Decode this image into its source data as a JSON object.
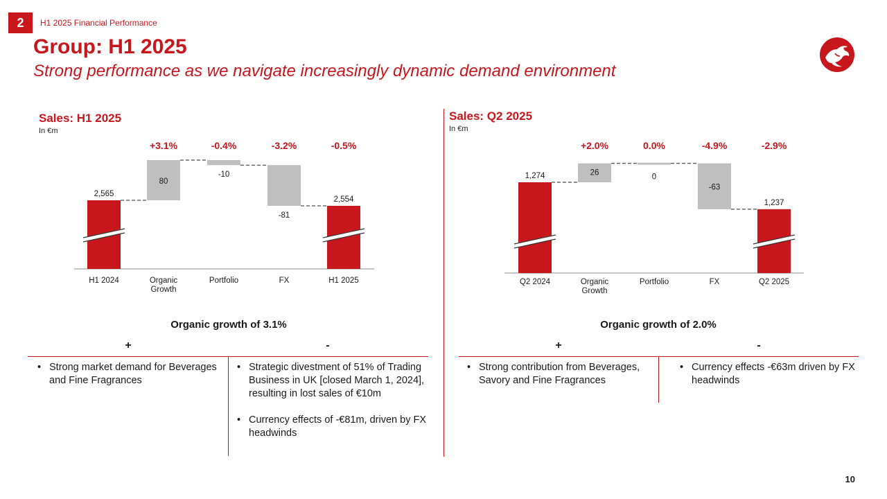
{
  "header": {
    "section_number": "2",
    "section_label": "H1 2025 Financial Performance",
    "title": "Group: H1 2025",
    "subtitle": "Strong performance as we navigate increasingly dynamic demand environment"
  },
  "colors": {
    "accent": "#c8161d",
    "delta_bar": "#bfbfbf",
    "axis": "#8c8c8c",
    "text": "#1a1a1a"
  },
  "icons": {
    "logo": "company-logo-icon"
  },
  "chart_data": [
    {
      "type": "bar",
      "subtype": "waterfall",
      "title": "Sales: H1 2025",
      "unit": "In €m",
      "categories": [
        "H1 2024",
        "Organic Growth",
        "Portfolio",
        "FX",
        "H1 2025"
      ],
      "values": [
        2565,
        80,
        -10,
        -81,
        2554
      ],
      "value_labels": [
        "2,565",
        "80",
        "-10",
        "-81",
        "2,554"
      ],
      "bar_kinds": [
        "total",
        "delta",
        "delta",
        "delta",
        "total"
      ],
      "growth_labels": [
        "+3.1%",
        "-0.4%",
        "-3.2%",
        "-0.5%"
      ],
      "axis_break": true
    },
    {
      "type": "bar",
      "subtype": "waterfall",
      "title": "Sales: Q2 2025",
      "unit": "In €m",
      "categories": [
        "Q2 2024",
        "Organic Growth",
        "Portfolio",
        "FX",
        "Q2 2025"
      ],
      "values": [
        1274,
        26,
        0,
        -63,
        1237
      ],
      "value_labels": [
        "1,274",
        "26",
        "0",
        "-63",
        "1,237"
      ],
      "bar_kinds": [
        "total",
        "delta",
        "delta",
        "delta",
        "total"
      ],
      "growth_labels": [
        "+2.0%",
        "0.0%",
        "-4.9%",
        "-2.9%"
      ],
      "axis_break": true
    }
  ],
  "left_panel": {
    "summary": "Organic growth of 3.1%",
    "plus_label": "+",
    "minus_label": "-",
    "plus_items": [
      "Strong market demand for Beverages and Fine Fragrances"
    ],
    "minus_items": [
      "Strategic divestment of 51% of Trading Business in UK [closed March 1, 2024], resulting in lost sales of €10m",
      "Currency effects of -€81m, driven by FX headwinds"
    ]
  },
  "right_panel": {
    "summary": "Organic growth of 2.0%",
    "plus_label": "+",
    "minus_label": "-",
    "plus_items": [
      "Strong contribution from Beverages, Savory and Fine Fragrances"
    ],
    "minus_items": [
      "Currency effects -€63m driven by FX headwinds"
    ]
  },
  "footer": {
    "page_number": "10"
  }
}
